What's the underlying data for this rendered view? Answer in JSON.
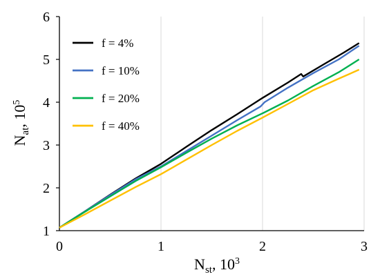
{
  "chart_data": {
    "type": "line",
    "xlim": [
      0,
      3
    ],
    "ylim": [
      1,
      6
    ],
    "x_ticks": [
      "0",
      "1",
      "2",
      "3"
    ],
    "y_ticks": [
      "1",
      "2",
      "3",
      "4",
      "5",
      "6"
    ],
    "grid": "vertical",
    "legend_position": "top-left",
    "xlabel": {
      "main": "N",
      "sub": "st",
      "rest": ", 10",
      "sup": "3"
    },
    "ylabel": {
      "main": "N",
      "sub": "at",
      "rest": ", 10",
      "sup": "5"
    },
    "series": [
      {
        "name": "f = 4%",
        "color": "#000000",
        "x": [
          0,
          0.25,
          0.5,
          0.75,
          1.0,
          1.25,
          1.5,
          1.75,
          2.0,
          2.25,
          2.38,
          2.4,
          2.6,
          2.8,
          2.95
        ],
        "y": [
          1.07,
          1.45,
          1.84,
          2.22,
          2.56,
          2.96,
          3.35,
          3.72,
          4.1,
          4.46,
          4.66,
          4.6,
          4.88,
          5.16,
          5.38
        ]
      },
      {
        "name": "f = 10%",
        "color": "#4472C4",
        "x": [
          0,
          0.25,
          0.5,
          0.75,
          1.0,
          1.25,
          1.5,
          1.75,
          1.98,
          2.02,
          2.25,
          2.5,
          2.75,
          2.95
        ],
        "y": [
          1.07,
          1.45,
          1.83,
          2.2,
          2.5,
          2.86,
          3.22,
          3.58,
          3.9,
          4.0,
          4.34,
          4.68,
          5.0,
          5.32
        ]
      },
      {
        "name": "f = 20%",
        "color": "#00B050",
        "x": [
          0,
          0.25,
          0.5,
          0.75,
          1.0,
          1.25,
          1.5,
          1.75,
          2.0,
          2.25,
          2.5,
          2.75,
          2.95
        ],
        "y": [
          1.07,
          1.44,
          1.8,
          2.16,
          2.48,
          2.82,
          3.15,
          3.46,
          3.74,
          4.04,
          4.38,
          4.7,
          5.0
        ]
      },
      {
        "name": "f = 40%",
        "color": "#FFC000",
        "x": [
          0,
          0.25,
          0.5,
          0.75,
          1.0,
          1.25,
          1.5,
          1.75,
          2.0,
          2.25,
          2.5,
          2.75,
          2.95
        ],
        "y": [
          1.07,
          1.38,
          1.7,
          2.02,
          2.32,
          2.66,
          3.0,
          3.33,
          3.64,
          3.96,
          4.28,
          4.55,
          4.76
        ]
      }
    ]
  }
}
